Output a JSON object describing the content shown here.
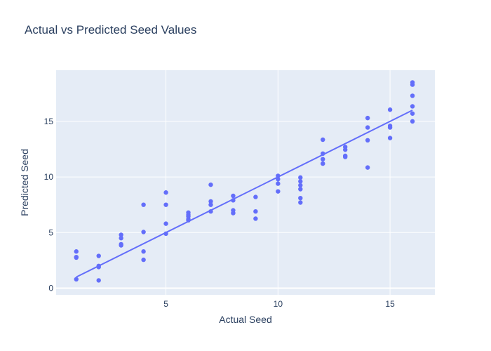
{
  "chart_data": {
    "type": "scatter",
    "title": "Actual vs Predicted Seed Values",
    "xlabel": "Actual Seed",
    "ylabel": "Predicted Seed",
    "xlim": [
      0.1,
      17.0
    ],
    "ylim": [
      -0.6,
      19.6
    ],
    "x_ticks": [
      5,
      10,
      15
    ],
    "y_ticks": [
      0,
      5,
      10,
      15
    ],
    "grid": true,
    "colors": {
      "marker": "#636efa",
      "line": "#636efa",
      "plot_bg": "#e5ecf6",
      "grid": "#ffffff",
      "text": "#2a3f5f"
    },
    "points": [
      {
        "x": 1,
        "y": 3.3
      },
      {
        "x": 1,
        "y": 2.8
      },
      {
        "x": 1,
        "y": 2.75
      },
      {
        "x": 1,
        "y": 0.8
      },
      {
        "x": 2,
        "y": 2.9
      },
      {
        "x": 2,
        "y": 2.0
      },
      {
        "x": 2,
        "y": 1.9
      },
      {
        "x": 2,
        "y": 0.7
      },
      {
        "x": 3,
        "y": 4.8
      },
      {
        "x": 3,
        "y": 4.5
      },
      {
        "x": 3,
        "y": 3.95
      },
      {
        "x": 3,
        "y": 3.85
      },
      {
        "x": 4,
        "y": 7.5
      },
      {
        "x": 4,
        "y": 5.05
      },
      {
        "x": 4,
        "y": 3.3
      },
      {
        "x": 4,
        "y": 2.55
      },
      {
        "x": 5,
        "y": 8.6
      },
      {
        "x": 5,
        "y": 7.5
      },
      {
        "x": 5,
        "y": 5.8
      },
      {
        "x": 5,
        "y": 4.9
      },
      {
        "x": 6,
        "y": 6.8
      },
      {
        "x": 6,
        "y": 6.6
      },
      {
        "x": 6,
        "y": 6.45
      },
      {
        "x": 6,
        "y": 6.2
      },
      {
        "x": 6,
        "y": 6.1
      },
      {
        "x": 7,
        "y": 9.3
      },
      {
        "x": 7,
        "y": 7.8
      },
      {
        "x": 7,
        "y": 7.5
      },
      {
        "x": 7,
        "y": 6.9
      },
      {
        "x": 8,
        "y": 8.3
      },
      {
        "x": 8,
        "y": 7.9
      },
      {
        "x": 8,
        "y": 7.0
      },
      {
        "x": 8,
        "y": 6.75
      },
      {
        "x": 9,
        "y": 8.2
      },
      {
        "x": 9,
        "y": 6.9
      },
      {
        "x": 9,
        "y": 6.25
      },
      {
        "x": 10,
        "y": 10.1
      },
      {
        "x": 10,
        "y": 9.8
      },
      {
        "x": 10,
        "y": 9.4
      },
      {
        "x": 10,
        "y": 8.7
      },
      {
        "x": 11,
        "y": 9.95
      },
      {
        "x": 11,
        "y": 9.6
      },
      {
        "x": 11,
        "y": 9.25
      },
      {
        "x": 11,
        "y": 8.9
      },
      {
        "x": 11,
        "y": 8.1
      },
      {
        "x": 11,
        "y": 7.7
      },
      {
        "x": 12,
        "y": 13.35
      },
      {
        "x": 12,
        "y": 12.1
      },
      {
        "x": 12,
        "y": 11.6
      },
      {
        "x": 12,
        "y": 11.2
      },
      {
        "x": 13,
        "y": 12.7
      },
      {
        "x": 13,
        "y": 12.45
      },
      {
        "x": 13,
        "y": 11.9
      },
      {
        "x": 13,
        "y": 11.8
      },
      {
        "x": 14,
        "y": 15.3
      },
      {
        "x": 14,
        "y": 14.45
      },
      {
        "x": 14,
        "y": 13.3
      },
      {
        "x": 14,
        "y": 10.85
      },
      {
        "x": 15,
        "y": 16.05
      },
      {
        "x": 15,
        "y": 14.6
      },
      {
        "x": 15,
        "y": 14.45
      },
      {
        "x": 15,
        "y": 13.5
      },
      {
        "x": 16,
        "y": 18.5
      },
      {
        "x": 16,
        "y": 18.3
      },
      {
        "x": 16,
        "y": 17.3
      },
      {
        "x": 16,
        "y": 16.35
      },
      {
        "x": 16,
        "y": 15.7
      },
      {
        "x": 16,
        "y": 15.0
      }
    ],
    "reference_line": [
      {
        "x": 1,
        "y": 1
      },
      {
        "x": 16,
        "y": 16
      }
    ]
  }
}
